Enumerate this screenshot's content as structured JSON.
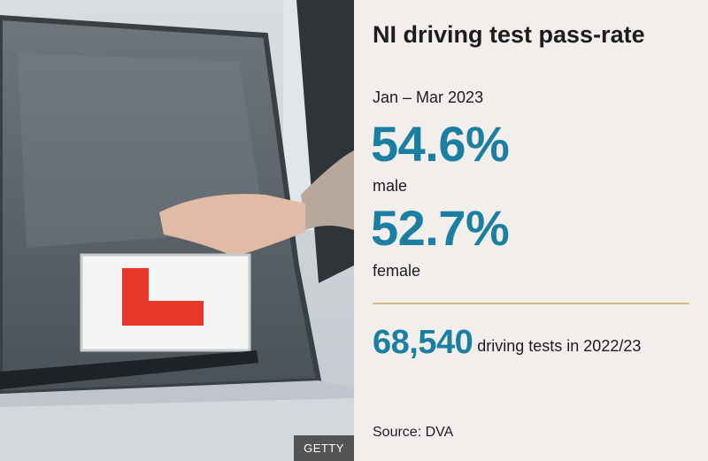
{
  "image": {
    "description_icon": "car-windscreen-l-plate-photo",
    "credit": "GETTY"
  },
  "panel": {
    "title": "NI driving test pass-rate",
    "period": "Jan – Mar 2023",
    "male_rate": "54.6%",
    "male_label": "male",
    "female_rate": "52.7%",
    "female_label": "female",
    "tests_count": "68,540",
    "tests_text": "driving tests in 2022/23",
    "source": "Source: DVA"
  },
  "colors": {
    "accent": "#1a7fa0",
    "rule": "#d4b982",
    "background": "#f1eeeb"
  }
}
